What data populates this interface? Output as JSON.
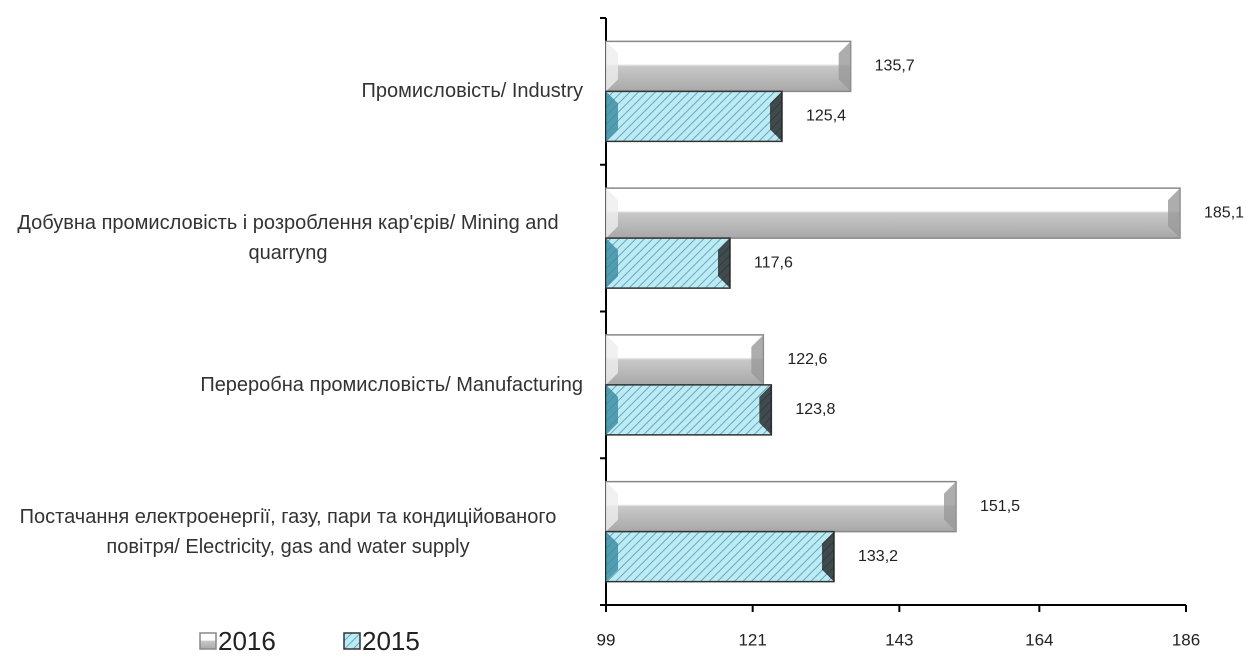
{
  "chart_data": {
    "type": "barh",
    "categories": [
      "Промисловість/ Industry",
      "Добувна промисловість і розроблення кар'єрів/ Mining and quarryng",
      "Переробна промисловість/ Manufacturing",
      "Постачання електроенергії, газу, пари та кондиційованого повітря/ Electricity, gas and water supply"
    ],
    "series": [
      {
        "name": "2016",
        "color": "#b8b8b8",
        "values": [
          135.7,
          185.1,
          122.6,
          151.5
        ],
        "value_labels": [
          "135,7",
          "185,1",
          "122,6",
          "151,5"
        ]
      },
      {
        "name": "2015",
        "color": "#7fd3e6",
        "values": [
          125.4,
          117.6,
          123.8,
          133.2
        ],
        "value_labels": [
          "125,4",
          "117,6",
          "123,8",
          "133,2"
        ]
      }
    ],
    "xlim": [
      99,
      186
    ],
    "xticks": [
      99,
      121,
      143,
      164,
      186
    ],
    "legend": "bottom-left"
  }
}
